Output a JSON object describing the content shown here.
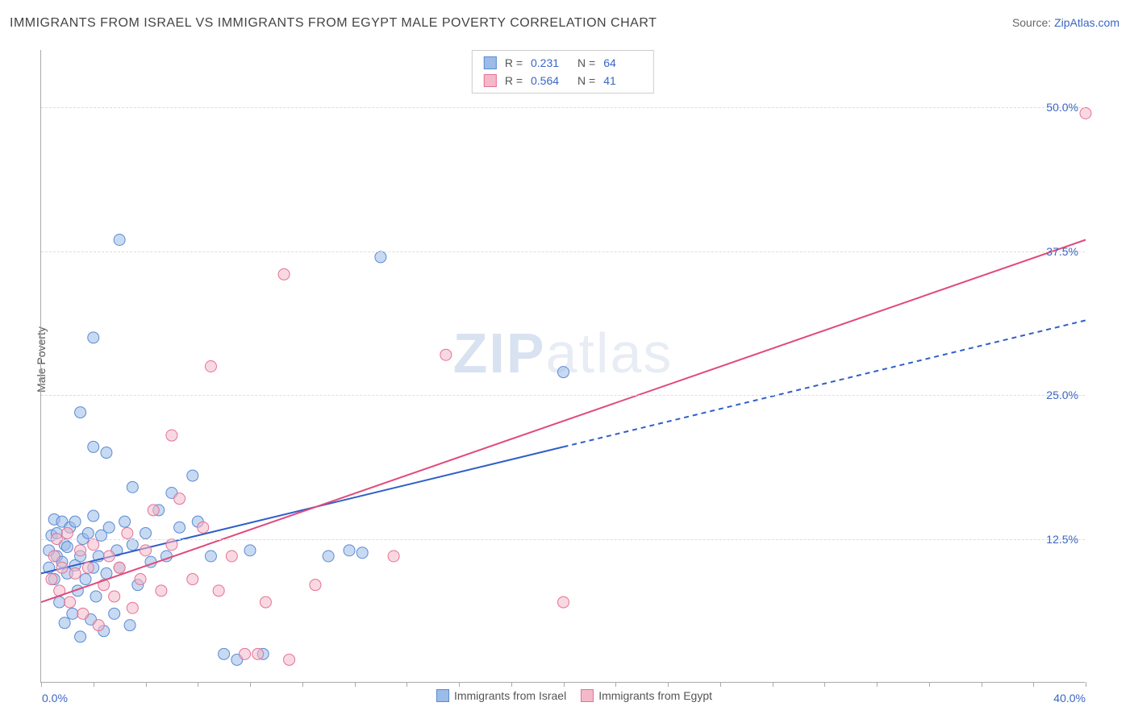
{
  "title": "IMMIGRANTS FROM ISRAEL VS IMMIGRANTS FROM EGYPT MALE POVERTY CORRELATION CHART",
  "source_prefix": "Source: ",
  "source_link": "ZipAtlas.com",
  "ylabel": "Male Poverty",
  "watermark_bold": "ZIP",
  "watermark_rest": "atlas",
  "chart": {
    "type": "scatter",
    "xlim": [
      0,
      40
    ],
    "ylim": [
      0,
      55
    ],
    "x_tick_labels": {
      "min": "0.0%",
      "max": "40.0%"
    },
    "y_ticks": [
      12.5,
      25.0,
      37.5,
      50.0
    ],
    "y_tick_labels": [
      "12.5%",
      "25.0%",
      "37.5%",
      "50.0%"
    ],
    "minor_x_step": 2,
    "grid_color": "#dddddd",
    "axis_color": "#aaaaaa",
    "background": "#ffffff",
    "marker_radius": 7,
    "marker_opacity": 0.55,
    "series": [
      {
        "id": "israel",
        "label": "Immigrants from Israel",
        "fill": "#9bbce8",
        "stroke": "#5a8ad4",
        "trend_color": "#2f5fc9",
        "trend_width": 2,
        "R_label": "R =",
        "R": "0.231",
        "N_label": "N =",
        "N": "64",
        "trend": {
          "x1": 0,
          "y1": 9.5,
          "x2": 20,
          "y2": 20.5,
          "extend_to_x": 40,
          "extend_y": 31.5,
          "dash": "6 5"
        },
        "points": [
          [
            0.3,
            10.0
          ],
          [
            0.3,
            11.5
          ],
          [
            0.4,
            12.8
          ],
          [
            0.5,
            9.0
          ],
          [
            0.5,
            14.2
          ],
          [
            0.6,
            13.0
          ],
          [
            0.6,
            11.0
          ],
          [
            0.7,
            7.0
          ],
          [
            0.8,
            10.5
          ],
          [
            0.8,
            14.0
          ],
          [
            0.9,
            12.0
          ],
          [
            0.9,
            5.2
          ],
          [
            1.0,
            9.5
          ],
          [
            1.0,
            11.8
          ],
          [
            1.1,
            13.5
          ],
          [
            1.2,
            6.0
          ],
          [
            1.3,
            10.2
          ],
          [
            1.3,
            14.0
          ],
          [
            1.4,
            8.0
          ],
          [
            1.5,
            11.0
          ],
          [
            1.5,
            4.0
          ],
          [
            1.6,
            12.5
          ],
          [
            1.7,
            9.0
          ],
          [
            1.8,
            13.0
          ],
          [
            1.9,
            5.5
          ],
          [
            2.0,
            10.0
          ],
          [
            2.0,
            14.5
          ],
          [
            2.1,
            7.5
          ],
          [
            2.2,
            11.0
          ],
          [
            2.3,
            12.8
          ],
          [
            2.4,
            4.5
          ],
          [
            2.5,
            9.5
          ],
          [
            2.6,
            13.5
          ],
          [
            2.8,
            6.0
          ],
          [
            2.9,
            11.5
          ],
          [
            3.0,
            10.0
          ],
          [
            3.2,
            14.0
          ],
          [
            3.4,
            5.0
          ],
          [
            3.5,
            12.0
          ],
          [
            3.7,
            8.5
          ],
          [
            4.0,
            13.0
          ],
          [
            4.2,
            10.5
          ],
          [
            4.5,
            15.0
          ],
          [
            4.8,
            11.0
          ],
          [
            5.0,
            16.5
          ],
          [
            5.3,
            13.5
          ],
          [
            5.8,
            18.0
          ],
          [
            6.0,
            14.0
          ],
          [
            6.5,
            11.0
          ],
          [
            7.0,
            2.5
          ],
          [
            7.5,
            2.0
          ],
          [
            8.0,
            11.5
          ],
          [
            8.5,
            2.5
          ],
          [
            11.0,
            11.0
          ],
          [
            11.8,
            11.5
          ],
          [
            12.3,
            11.3
          ],
          [
            3.0,
            38.5
          ],
          [
            2.0,
            30.0
          ],
          [
            1.5,
            23.5
          ],
          [
            2.5,
            20.0
          ],
          [
            2.0,
            20.5
          ],
          [
            3.5,
            17.0
          ],
          [
            13.0,
            37.0
          ],
          [
            20.0,
            27.0
          ]
        ]
      },
      {
        "id": "egypt",
        "label": "Immigrants from Egypt",
        "fill": "#f4b9c9",
        "stroke": "#e76f95",
        "trend_color": "#e04a7a",
        "trend_width": 2,
        "R_label": "R =",
        "R": "0.564",
        "N_label": "N =",
        "N": "41",
        "trend": {
          "x1": 0,
          "y1": 7.0,
          "x2": 40,
          "y2": 38.5,
          "extend_to_x": 40,
          "extend_y": 38.5,
          "dash": ""
        },
        "points": [
          [
            0.4,
            9.0
          ],
          [
            0.5,
            11.0
          ],
          [
            0.6,
            12.5
          ],
          [
            0.7,
            8.0
          ],
          [
            0.8,
            10.0
          ],
          [
            1.0,
            13.0
          ],
          [
            1.1,
            7.0
          ],
          [
            1.3,
            9.5
          ],
          [
            1.5,
            11.5
          ],
          [
            1.6,
            6.0
          ],
          [
            1.8,
            10.0
          ],
          [
            2.0,
            12.0
          ],
          [
            2.2,
            5.0
          ],
          [
            2.4,
            8.5
          ],
          [
            2.6,
            11.0
          ],
          [
            2.8,
            7.5
          ],
          [
            3.0,
            10.0
          ],
          [
            3.3,
            13.0
          ],
          [
            3.5,
            6.5
          ],
          [
            3.8,
            9.0
          ],
          [
            4.0,
            11.5
          ],
          [
            4.3,
            15.0
          ],
          [
            4.6,
            8.0
          ],
          [
            5.0,
            12.0
          ],
          [
            5.3,
            16.0
          ],
          [
            5.8,
            9.0
          ],
          [
            6.2,
            13.5
          ],
          [
            6.8,
            8.0
          ],
          [
            7.3,
            11.0
          ],
          [
            7.8,
            2.5
          ],
          [
            8.3,
            2.5
          ],
          [
            8.6,
            7.0
          ],
          [
            9.5,
            2.0
          ],
          [
            10.5,
            8.5
          ],
          [
            13.5,
            11.0
          ],
          [
            20.0,
            7.0
          ],
          [
            9.3,
            35.5
          ],
          [
            6.5,
            27.5
          ],
          [
            5.0,
            21.5
          ],
          [
            15.5,
            28.5
          ],
          [
            40.0,
            49.5
          ]
        ]
      }
    ]
  }
}
